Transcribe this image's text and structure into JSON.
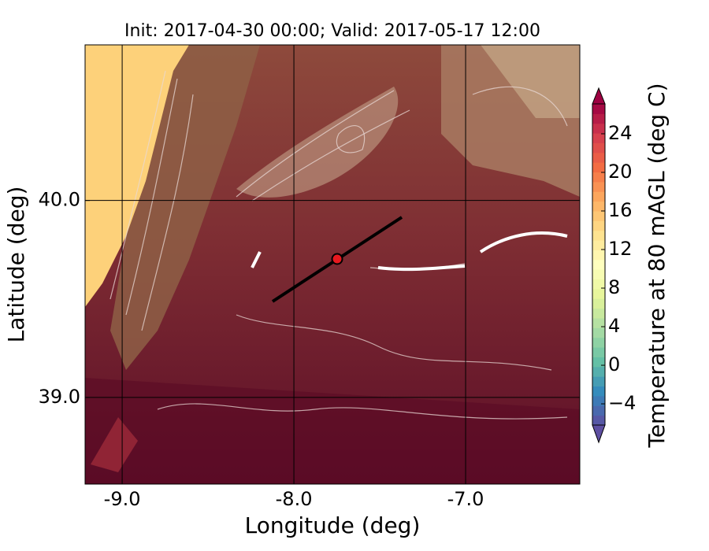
{
  "chart_data": {
    "type": "map",
    "title": "Init: 2017-04-30 00:00; Valid: 2017-05-17 12:00",
    "x_label": "Longitude (deg)",
    "y_label": "Latitude (deg)",
    "xlim": [
      -9.216,
      -6.335
    ],
    "ylim": [
      38.56,
      40.79
    ],
    "xticks": [
      {
        "value": -9,
        "label": "-9.0"
      },
      {
        "value": -8,
        "label": "-8.0"
      },
      {
        "value": -7,
        "label": "-7.0"
      }
    ],
    "yticks": [
      {
        "value": 39,
        "label": "39.0"
      },
      {
        "value": 40,
        "label": "40.0"
      }
    ],
    "grid": true,
    "colorbar": {
      "label": "Temperature at 80 mAGL (deg C)",
      "lim": [
        -6.2,
        27.1
      ],
      "ticks": [
        {
          "value": -4,
          "label": "−4"
        },
        0,
        4,
        8,
        12,
        16,
        20,
        24
      ]
    }
  }
}
